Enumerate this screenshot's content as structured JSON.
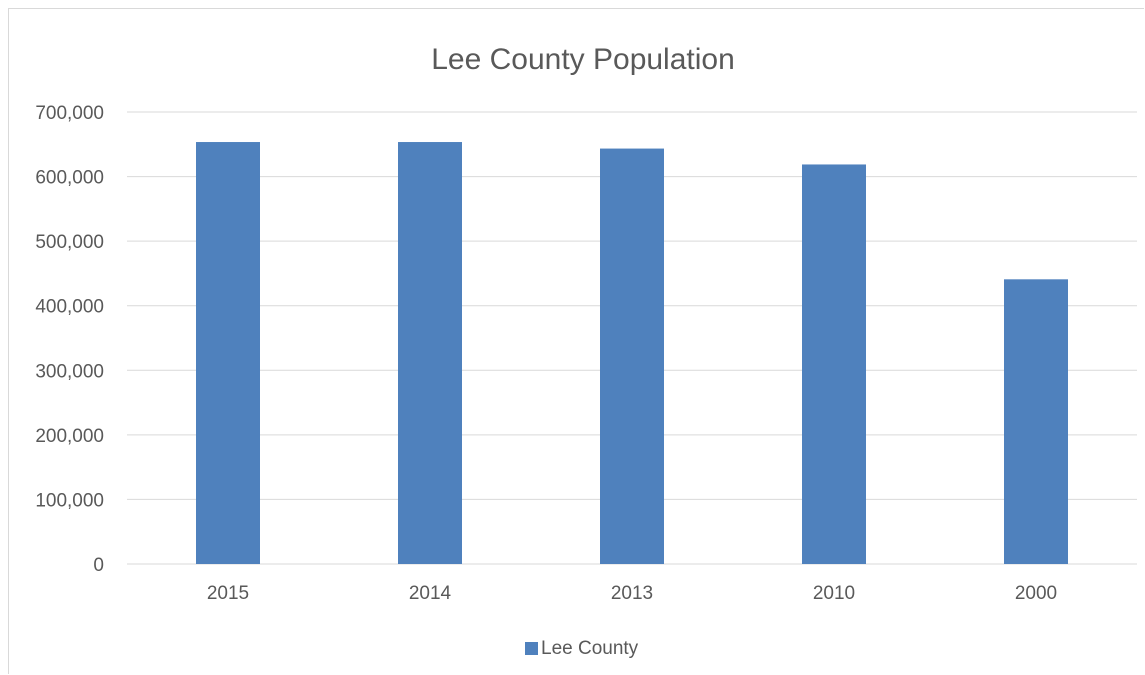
{
  "chart_data": {
    "type": "bar",
    "title": "Lee County Population",
    "xlabel": "",
    "ylabel": "",
    "categories": [
      "2015",
      "2014",
      "2013",
      "2010",
      "2000"
    ],
    "series": [
      {
        "name": "Lee County",
        "values": [
          653485,
          653485,
          643367,
          618754,
          440888
        ],
        "color": "#4f81bd"
      }
    ],
    "ylim": [
      0,
      700000
    ],
    "y_ticks": [
      0,
      100000,
      200000,
      300000,
      400000,
      500000,
      600000,
      700000
    ],
    "y_tick_labels": [
      "0",
      "100,000",
      "200,000",
      "300,000",
      "400,000",
      "500,000",
      "600,000",
      "700,000"
    ],
    "grid": true,
    "legend_position": "bottom",
    "colors": {
      "bar": "#4f81bd",
      "grid": "#d9d9d9",
      "text": "#595959"
    }
  }
}
